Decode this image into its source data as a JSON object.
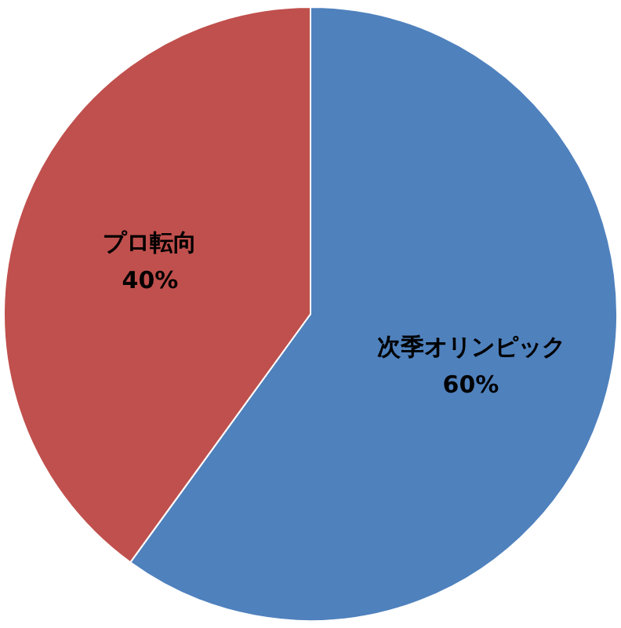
{
  "chart_data": {
    "type": "pie",
    "categories": [
      "次季オリンピック",
      "プロ転向"
    ],
    "values": [
      60,
      40
    ],
    "value_labels": [
      "60%",
      "40%"
    ],
    "colors": [
      "#4f81bd",
      "#c0504d"
    ],
    "legend": false
  }
}
